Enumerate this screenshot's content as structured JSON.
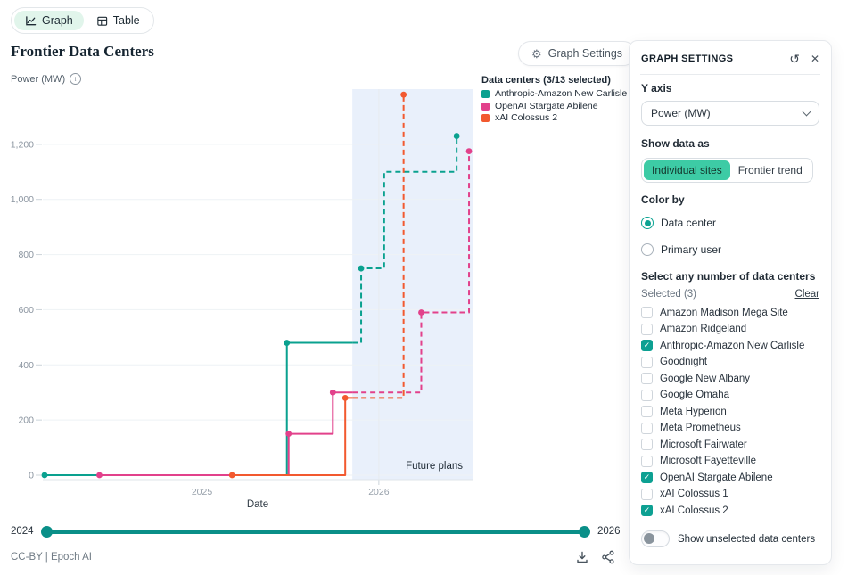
{
  "view_tabs": {
    "graph": "Graph",
    "table": "Table"
  },
  "title": "Frontier Data Centers",
  "graph_settings_button": "Graph Settings",
  "y_axis_title": "Power (MW)",
  "x_axis_label": "Date",
  "legend": {
    "title": "Data centers (3/13 selected)"
  },
  "chart_data": {
    "type": "line",
    "title": "Frontier Data Centers",
    "xlabel": "Date",
    "ylabel": "Power (MW)",
    "xlim": [
      2024.1,
      2026.53
    ],
    "ylim": [
      0,
      1400
    ],
    "x_ticks": [
      2025,
      2026
    ],
    "y_ticks": [
      0,
      200,
      400,
      600,
      800,
      1000,
      1200
    ],
    "grid": true,
    "legend_position": "top-right",
    "future_region": {
      "start": 2025.85,
      "end": 2026.53,
      "label": "Future plans",
      "fill": "#e9f0fb"
    },
    "series": [
      {
        "name": "Anthropic-Amazon New Carlisle",
        "color": "#0aa18f",
        "solid": [
          [
            2024.11,
            0
          ],
          [
            2025.48,
            0
          ],
          [
            2025.48,
            480
          ],
          [
            2025.85,
            480
          ]
        ],
        "dashed": [
          [
            2025.85,
            480
          ],
          [
            2025.9,
            480
          ],
          [
            2025.9,
            750
          ],
          [
            2026.03,
            750
          ],
          [
            2026.03,
            1100
          ],
          [
            2026.44,
            1100
          ],
          [
            2026.44,
            1230
          ]
        ],
        "dots": [
          [
            2024.11,
            0
          ],
          [
            2025.48,
            480
          ],
          [
            2025.9,
            750
          ],
          [
            2026.44,
            1230
          ]
        ]
      },
      {
        "name": "OpenAI Stargate Abilene",
        "color": "#e2418b",
        "solid": [
          [
            2024.42,
            0
          ],
          [
            2025.49,
            0
          ],
          [
            2025.49,
            150
          ],
          [
            2025.74,
            150
          ],
          [
            2025.74,
            300
          ],
          [
            2025.85,
            300
          ]
        ],
        "dashed": [
          [
            2025.85,
            300
          ],
          [
            2026.24,
            300
          ],
          [
            2026.24,
            590
          ],
          [
            2026.51,
            590
          ],
          [
            2026.51,
            1175
          ]
        ],
        "dots": [
          [
            2024.42,
            0
          ],
          [
            2025.49,
            150
          ],
          [
            2025.74,
            300
          ],
          [
            2026.24,
            590
          ],
          [
            2026.51,
            1175
          ]
        ]
      },
      {
        "name": "xAI Colossus 2",
        "color": "#f2592f",
        "solid": [
          [
            2025.17,
            0
          ],
          [
            2025.81,
            0
          ],
          [
            2025.81,
            280
          ],
          [
            2025.85,
            280
          ]
        ],
        "dashed": [
          [
            2025.85,
            280
          ],
          [
            2026.14,
            280
          ],
          [
            2026.14,
            1380
          ]
        ],
        "dots": [
          [
            2025.17,
            0
          ],
          [
            2025.81,
            280
          ],
          [
            2026.14,
            1380
          ]
        ]
      }
    ]
  },
  "slider": {
    "min_label": "2024",
    "max_label": "2026"
  },
  "footer": {
    "license": "CC-BY | Epoch AI"
  },
  "panel": {
    "title": "GRAPH SETTINGS",
    "y_axis_label": "Y axis",
    "y_axis_value": "Power (MW)",
    "show_data_as_label": "Show data as",
    "show_data_options": [
      {
        "label": "Individual sites",
        "active": true
      },
      {
        "label": "Frontier trend",
        "active": false
      }
    ],
    "color_by_label": "Color by",
    "color_by_options": [
      {
        "label": "Data center",
        "selected": true
      },
      {
        "label": "Primary user",
        "selected": false
      }
    ],
    "select_label": "Select any number of data centers",
    "selected_count_label": "Selected (3)",
    "clear_label": "Clear",
    "data_centers": [
      {
        "label": "Amazon Madison Mega Site",
        "checked": false
      },
      {
        "label": "Amazon Ridgeland",
        "checked": false
      },
      {
        "label": "Anthropic-Amazon New Carlisle",
        "checked": true
      },
      {
        "label": "Goodnight",
        "checked": false
      },
      {
        "label": "Google New Albany",
        "checked": false
      },
      {
        "label": "Google Omaha",
        "checked": false
      },
      {
        "label": "Meta Hyperion",
        "checked": false
      },
      {
        "label": "Meta Prometheus",
        "checked": false
      },
      {
        "label": "Microsoft Fairwater",
        "checked": false
      },
      {
        "label": "Microsoft Fayetteville",
        "checked": false
      },
      {
        "label": "OpenAI Stargate Abilene",
        "checked": true
      },
      {
        "label": "xAI Colossus 1",
        "checked": false
      },
      {
        "label": "xAI Colossus 2",
        "checked": true
      }
    ],
    "show_unselected_label": "Show unselected data centers"
  }
}
